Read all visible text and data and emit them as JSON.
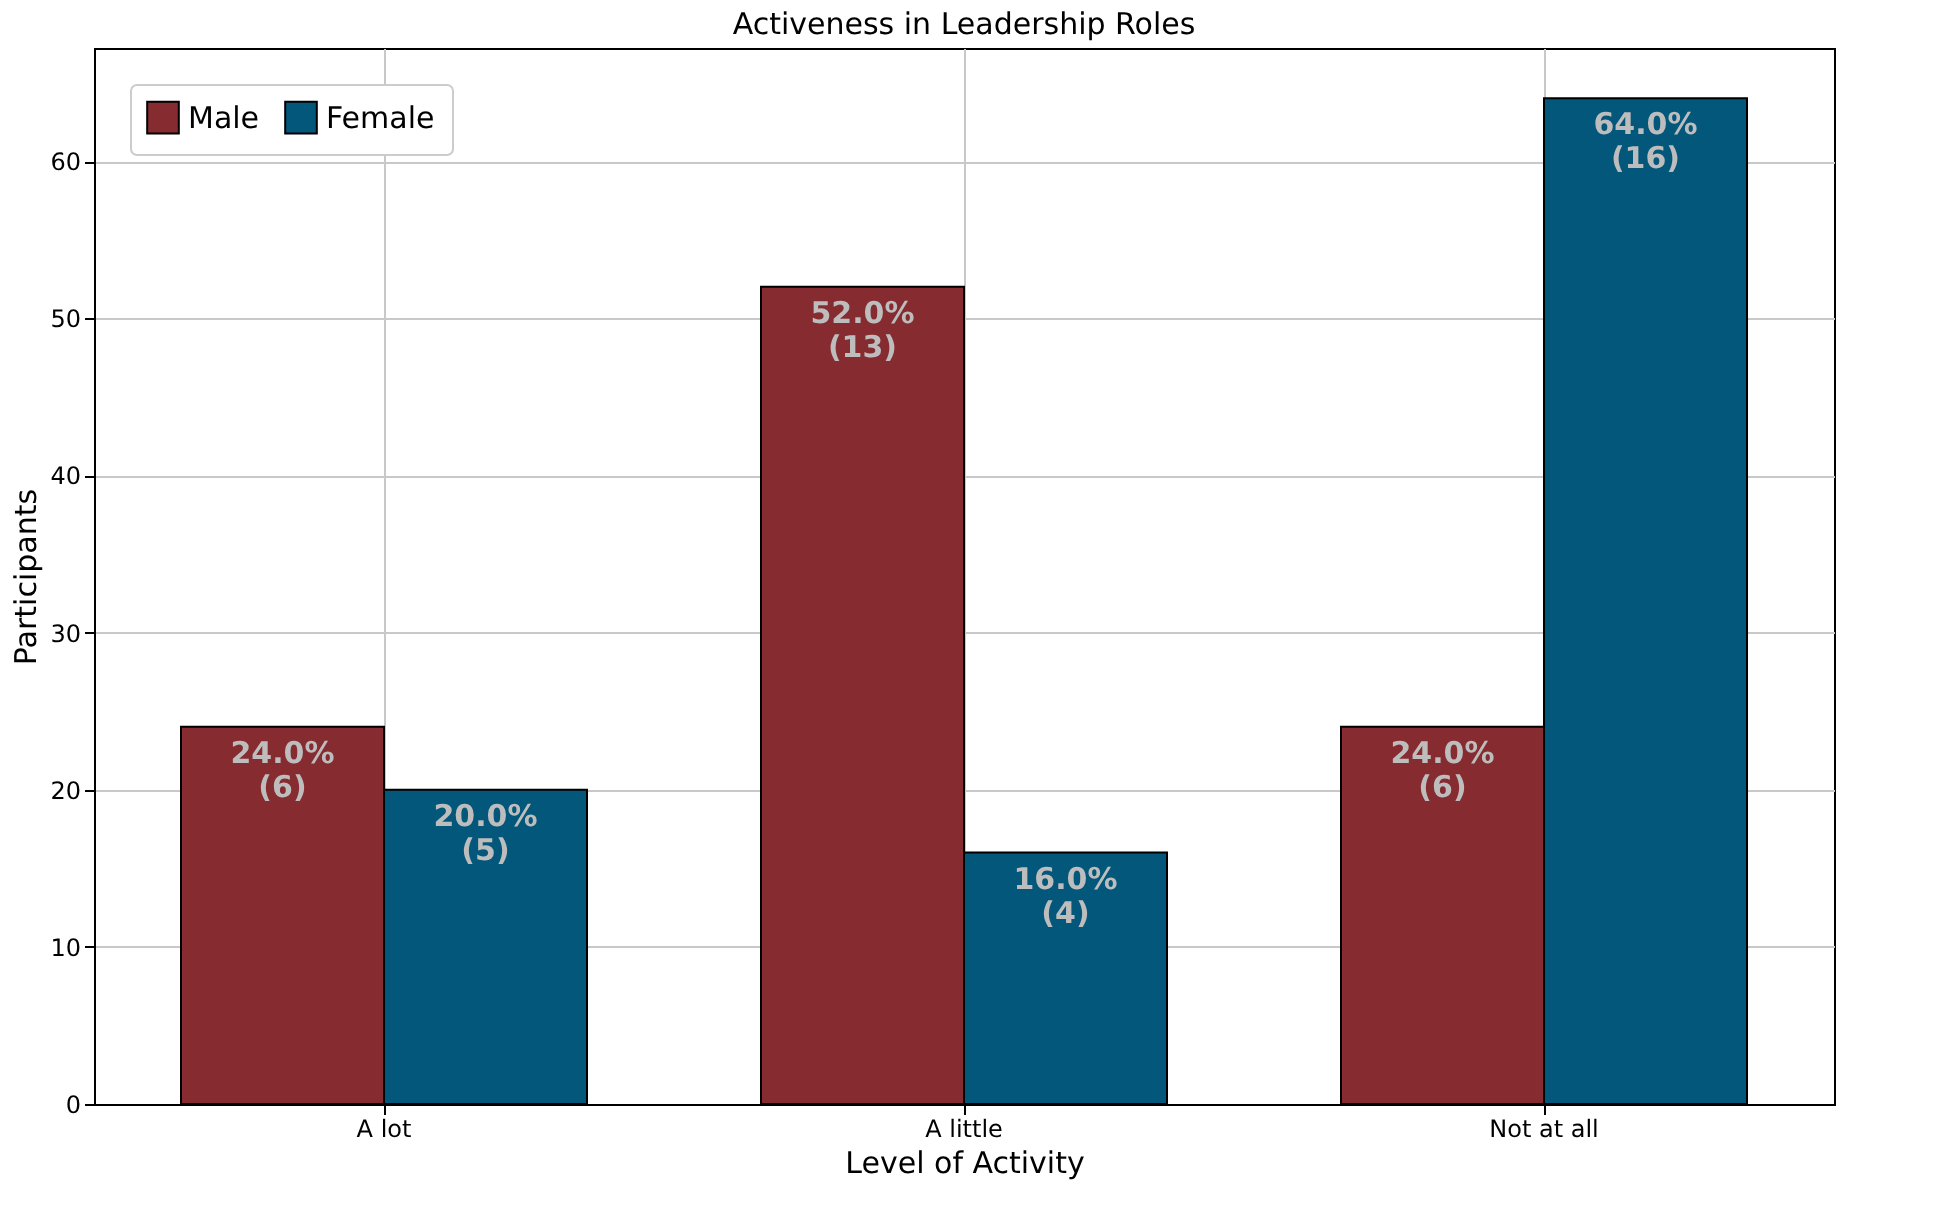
{
  "chart_data": {
    "type": "bar",
    "title": "Activeness in Leadership Roles",
    "xlabel": "Level of Activity",
    "ylabel": "Participants",
    "categories": [
      "A lot",
      "A little",
      "Not at all"
    ],
    "series": [
      {
        "name": "Male",
        "color": "#862b30",
        "values": [
          24,
          52,
          24
        ],
        "value_labels": [
          "24.0%\n(6)",
          "52.0%\n(13)",
          "24.0%\n(6)"
        ]
      },
      {
        "name": "Female",
        "color": "#02577a",
        "values": [
          20,
          16,
          64
        ],
        "value_labels": [
          "20.0%\n(5)",
          "16.0%\n(4)",
          "64.0%\n(16)"
        ]
      }
    ],
    "ylim": [
      0,
      67.2
    ],
    "yticks": [
      0,
      10,
      20,
      30,
      40,
      50,
      60
    ],
    "grid": true,
    "legend": "top left"
  }
}
